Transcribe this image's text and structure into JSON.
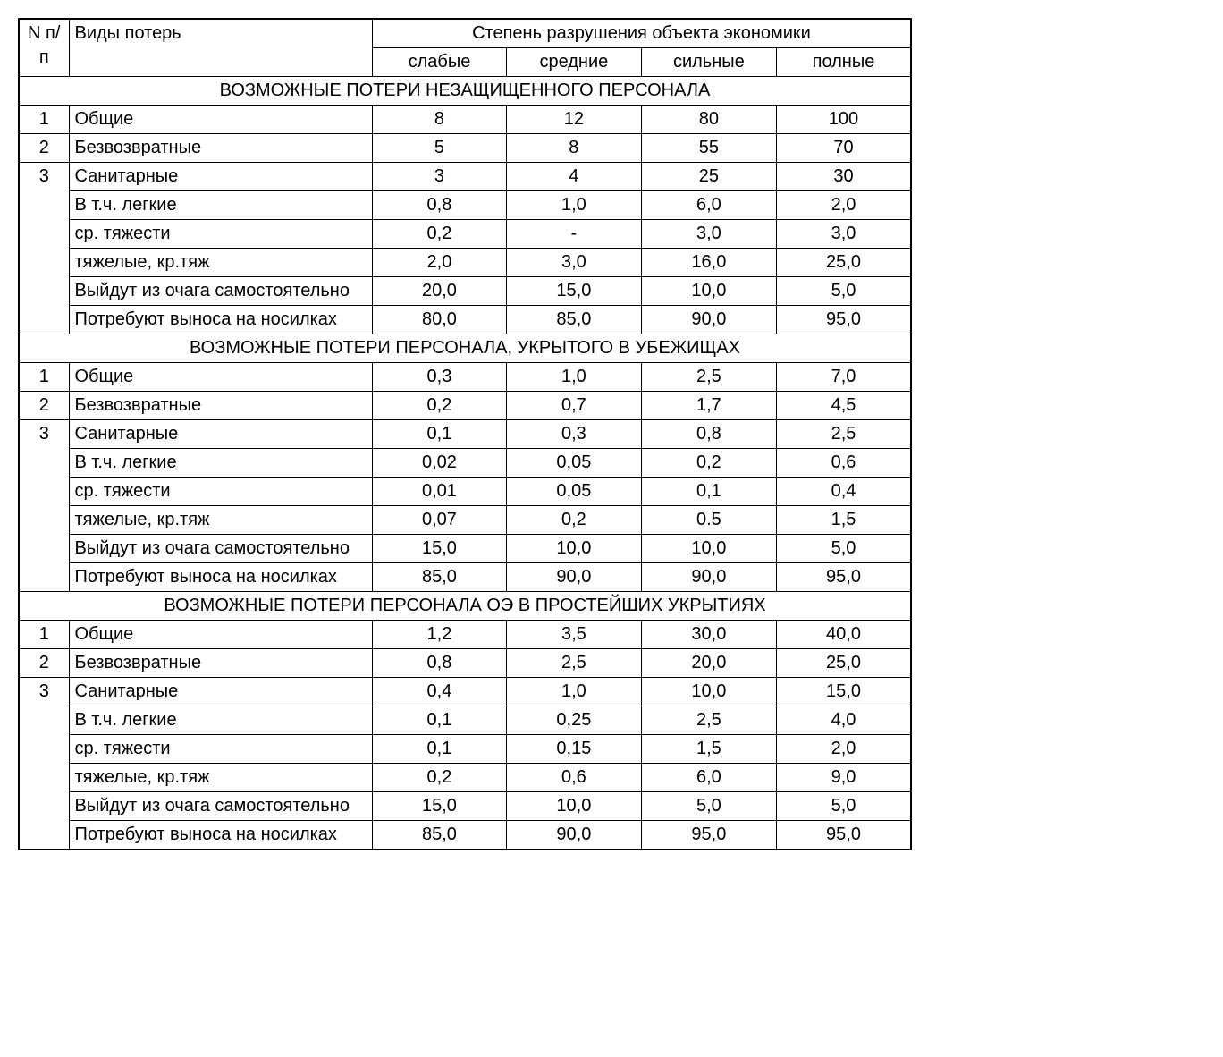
{
  "type": "table",
  "columns": {
    "num": "N п/п",
    "label": "Виды потерь",
    "group": "Степень разрушения объекта экономики",
    "c1": "слабые",
    "c2": "средние",
    "c3": "сильные",
    "c4": "полные"
  },
  "sections": [
    {
      "title": "ВОЗМОЖНЫЕ ПОТЕРИ НЕЗАЩИЩЕННОГО ПЕРСОНАЛА",
      "rows": [
        {
          "num": "1",
          "label": "Общие",
          "v": [
            "8",
            "12",
            "80",
            "100"
          ],
          "cont": false
        },
        {
          "num": "2",
          "label": "Безвозвратные",
          "v": [
            "5",
            "8",
            "55",
            "70"
          ],
          "cont": false
        },
        {
          "num": "3",
          "label": "Санитарные",
          "v": [
            "3",
            "4",
            "25",
            "30"
          ],
          "cont": false
        },
        {
          "num": "",
          "label": "В т.ч. легкие",
          "v": [
            "0,8",
            "1,0",
            "6,0",
            "2,0"
          ],
          "cont": true
        },
        {
          "num": "",
          "label": "ср. тяжести",
          "v": [
            "0,2",
            "-",
            "3,0",
            "3,0"
          ],
          "cont": true
        },
        {
          "num": "",
          "label": "тяжелые, кр.тяж",
          "v": [
            "2,0",
            "3,0",
            "16,0",
            "25,0"
          ],
          "cont": true
        },
        {
          "num": "",
          "label": "Выйдут из очага самостоятельно",
          "v": [
            "20,0",
            "15,0",
            "10,0",
            "5,0"
          ],
          "cont": true
        },
        {
          "num": "",
          "label": "Потребуют выноса на носилках",
          "v": [
            "80,0",
            "85,0",
            "90,0",
            "95,0"
          ],
          "cont": true
        }
      ]
    },
    {
      "title": "ВОЗМОЖНЫЕ ПОТЕРИ ПЕРСОНАЛА, УКРЫТОГО В УБЕЖИЩАХ",
      "rows": [
        {
          "num": "1",
          "label": "Общие",
          "v": [
            "0,3",
            "1,0",
            "2,5",
            "7,0"
          ],
          "cont": false
        },
        {
          "num": "2",
          "label": "Безвозвратные",
          "v": [
            "0,2",
            "0,7",
            "1,7",
            "4,5"
          ],
          "cont": false
        },
        {
          "num": "3",
          "label": "Санитарные",
          "v": [
            "0,1",
            "0,3",
            "0,8",
            "2,5"
          ],
          "cont": false
        },
        {
          "num": "",
          "label": "В т.ч. легкие",
          "v": [
            "0,02",
            "0,05",
            "0,2",
            "0,6"
          ],
          "cont": true
        },
        {
          "num": "",
          "label": "ср. тяжести",
          "v": [
            "0,01",
            "0,05",
            "0,1",
            "0,4"
          ],
          "cont": true
        },
        {
          "num": "",
          "label": "тяжелые, кр.тяж",
          "v": [
            "0,07",
            "0,2",
            "0.5",
            "1,5"
          ],
          "cont": true
        },
        {
          "num": "",
          "label": "Выйдут из очага самостоятельно",
          "v": [
            "15,0",
            "10,0",
            "10,0",
            "5,0"
          ],
          "cont": true
        },
        {
          "num": "",
          "label": "Потребуют выноса на носилках",
          "v": [
            "85,0",
            "90,0",
            "90,0",
            "95,0"
          ],
          "cont": true
        }
      ]
    },
    {
      "title": "ВОЗМОЖНЫЕ ПОТЕРИ ПЕРСОНАЛА ОЭ В ПРОСТЕЙШИХ   УКРЫТИЯХ",
      "rows": [
        {
          "num": "1",
          "label": "Общие",
          "v": [
            "1,2",
            "3,5",
            "30,0",
            "40,0"
          ],
          "cont": false
        },
        {
          "num": "2",
          "label": "Безвозвратные",
          "v": [
            "0,8",
            "2,5",
            "20,0",
            "25,0"
          ],
          "cont": false
        },
        {
          "num": "3",
          "label": "Санитарные",
          "v": [
            "0,4",
            "1,0",
            "10,0",
            "15,0"
          ],
          "cont": false
        },
        {
          "num": "",
          "label": "В т.ч. легкие",
          "v": [
            "0,1",
            "0,25",
            "2,5",
            "4,0"
          ],
          "cont": true
        },
        {
          "num": "",
          "label": "ср. тяжести",
          "v": [
            "0,1",
            "0,15",
            "1,5",
            "2,0"
          ],
          "cont": true
        },
        {
          "num": "",
          "label": "тяжелые, кр.тяж",
          "v": [
            "0,2",
            "0,6",
            "6,0",
            "9,0"
          ],
          "cont": true
        },
        {
          "num": "",
          "label": "Выйдут из очага самостоятельно",
          "v": [
            "15,0",
            "10,0",
            "5,0",
            "5,0"
          ],
          "cont": true
        },
        {
          "num": "",
          "label": "Потребуют выноса на носилках",
          "v": [
            "85,0",
            "90,0",
            "95,0",
            "95,0"
          ],
          "cont": true
        }
      ]
    }
  ]
}
